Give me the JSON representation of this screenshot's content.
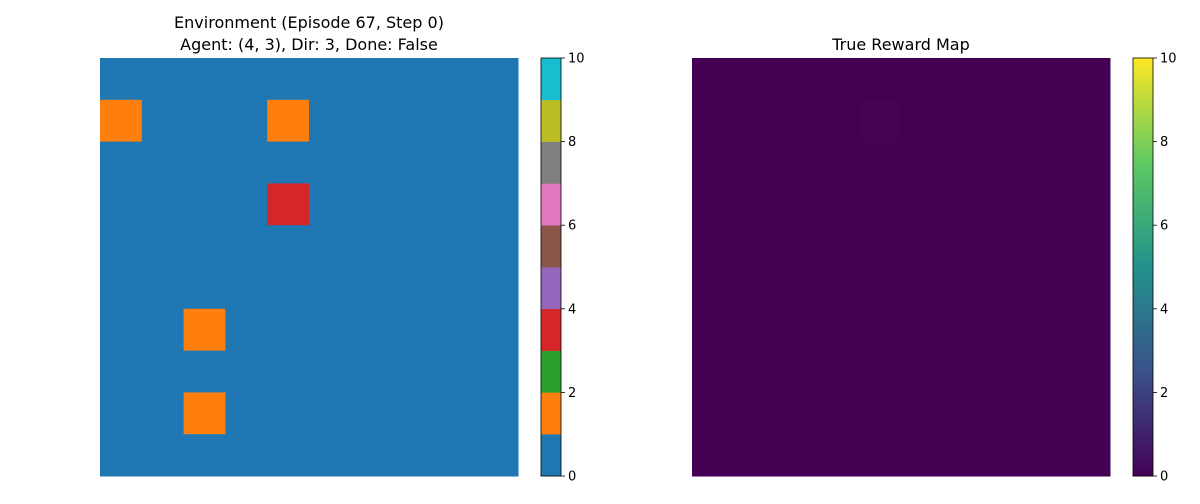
{
  "chart_data": [
    {
      "type": "heatmap",
      "title": "Environment (Episode 67, Step 0)",
      "subtitle": "Agent: (4, 3), Dir: 3, Done: False",
      "grid_size": [
        10,
        10
      ],
      "grid": [
        [
          0,
          0,
          0,
          0,
          0,
          0,
          0,
          0,
          0,
          0
        ],
        [
          1,
          0,
          0,
          0,
          1,
          0,
          0,
          0,
          0,
          0
        ],
        [
          0,
          0,
          0,
          0,
          0,
          0,
          0,
          0,
          0,
          0
        ],
        [
          0,
          0,
          0,
          0,
          3,
          0,
          0,
          0,
          0,
          0
        ],
        [
          0,
          0,
          0,
          0,
          0,
          0,
          0,
          0,
          0,
          0
        ],
        [
          0,
          0,
          0,
          0,
          0,
          0,
          0,
          0,
          0,
          0
        ],
        [
          0,
          0,
          1,
          0,
          0,
          0,
          0,
          0,
          0,
          0
        ],
        [
          0,
          0,
          0,
          0,
          0,
          0,
          0,
          0,
          0,
          0
        ],
        [
          0,
          0,
          1,
          0,
          0,
          0,
          0,
          0,
          0,
          0
        ],
        [
          0,
          0,
          0,
          0,
          0,
          0,
          0,
          0,
          0,
          0
        ]
      ],
      "grid_note_colors": [
        "#1f77b4",
        "#ff7f0e",
        "#2ca02c",
        "#d62728",
        "#9467bd",
        "#8c564b",
        "#e377c2",
        "#7f7f7f",
        "#bcbd22",
        "#17becf"
      ],
      "colorbar": {
        "colormap": "tab10",
        "range": [
          0,
          10
        ],
        "ticks": [
          "0",
          "2",
          "4",
          "6",
          "8",
          "10"
        ]
      },
      "axes_visible": false
    },
    {
      "type": "heatmap",
      "title": "True Reward Map",
      "grid_size": [
        10,
        10
      ],
      "grid": [
        [
          0,
          0,
          0,
          0,
          0,
          0,
          0,
          0,
          0,
          0
        ],
        [
          0,
          0,
          0,
          0,
          0.05,
          0,
          0,
          0,
          0,
          0
        ],
        [
          0,
          0,
          0,
          0,
          0,
          0,
          0,
          0,
          0,
          0
        ],
        [
          0,
          0,
          0,
          0,
          0,
          0,
          0,
          0,
          0,
          0
        ],
        [
          0,
          0,
          0,
          0,
          0,
          0,
          0,
          0,
          0,
          0
        ],
        [
          0,
          0,
          0,
          0,
          0,
          0,
          0,
          0,
          0,
          0
        ],
        [
          0,
          0,
          0,
          0,
          0,
          0,
          0,
          0,
          0,
          0
        ],
        [
          0,
          0,
          0,
          0,
          0,
          0,
          0,
          0,
          0,
          0
        ],
        [
          0,
          0,
          0,
          0,
          0,
          0,
          0,
          0,
          0,
          0
        ],
        [
          0,
          0,
          0,
          0,
          0,
          0,
          0,
          0,
          0,
          0
        ]
      ],
      "colorbar": {
        "colormap": "viridis",
        "range": [
          0,
          10
        ],
        "ticks": [
          "0",
          "2",
          "4",
          "6",
          "8",
          "10"
        ]
      },
      "axes_visible": false
    }
  ]
}
